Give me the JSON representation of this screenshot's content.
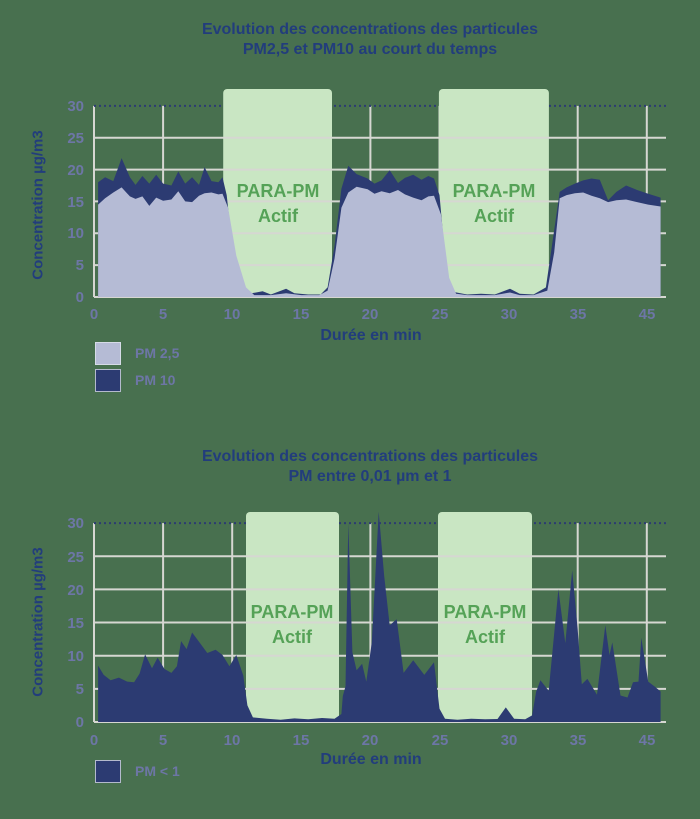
{
  "colors": {
    "background": "#48704F",
    "navy": "#2C3B72",
    "lavender": "#B5BBD5",
    "band_green": "#C9E6C3",
    "band_text_green": "#55A257",
    "title_navy": "#223D7C",
    "tick_slate": "#6D76A6",
    "grid_gray": "#D6D7D2"
  },
  "chart_data": [
    {
      "type": "area",
      "title_lines": [
        "Evolution des concentrations des particules",
        "PM2,5 et PM10 au court du temps"
      ],
      "xlabel": "Durée en min",
      "ylabel": "Concentration µg/m3",
      "ylim": [
        0,
        30
      ],
      "y_tick_labels": [
        "0",
        "5",
        "10",
        "15",
        "20",
        "25",
        "30"
      ],
      "x_tick_labels": [
        "0",
        "5",
        "10",
        "15",
        "20",
        "25",
        "30",
        "35",
        "45"
      ],
      "x_tick_units": [
        0,
        5,
        10,
        15,
        20,
        25,
        30,
        35,
        40
      ],
      "band_label_lines": [
        "PARA-PM",
        "Actif"
      ],
      "bands": [
        {
          "label": "PARA-PM Actif",
          "x1": 9.35,
          "x2": 17.22
        },
        {
          "label": "PARA-PM Actif",
          "x1": 24.96,
          "x2": 32.92
        }
      ],
      "series": [
        {
          "name": "PM 2,5",
          "color": "#B5BBD5",
          "points": [
            [
              0.3,
              14.5
            ],
            [
              0.8,
              15.5
            ],
            [
              1.4,
              16.4
            ],
            [
              2.0,
              17.2
            ],
            [
              2.6,
              15.8
            ],
            [
              3.0,
              15.4
            ],
            [
              3.5,
              15.8
            ],
            [
              4.0,
              14.3
            ],
            [
              4.5,
              15.6
            ],
            [
              5.0,
              15.1
            ],
            [
              5.6,
              15.3
            ],
            [
              6.1,
              16.6
            ],
            [
              6.6,
              15.0
            ],
            [
              7.1,
              14.9
            ],
            [
              7.6,
              15.9
            ],
            [
              8.0,
              16.3
            ],
            [
              8.5,
              16.4
            ],
            [
              9.0,
              16.1
            ],
            [
              9.3,
              16.2
            ],
            [
              9.7,
              14.0
            ],
            [
              10.3,
              6.5
            ],
            [
              11.0,
              1.5
            ],
            [
              11.6,
              0.3
            ],
            [
              12.8,
              0.3
            ],
            [
              13.9,
              0.6
            ],
            [
              15.0,
              0.3
            ],
            [
              16.3,
              0.3
            ],
            [
              16.9,
              1.0
            ],
            [
              17.4,
              6.0
            ],
            [
              17.9,
              14.0
            ],
            [
              18.4,
              16.4
            ],
            [
              19.0,
              17.3
            ],
            [
              19.8,
              16.9
            ],
            [
              20.3,
              16.2
            ],
            [
              20.8,
              16.6
            ],
            [
              21.4,
              16.3
            ],
            [
              22.0,
              16.8
            ],
            [
              22.5,
              16.1
            ],
            [
              23.1,
              15.6
            ],
            [
              23.7,
              15.2
            ],
            [
              24.2,
              15.8
            ],
            [
              24.6,
              15.9
            ],
            [
              25.1,
              13.0
            ],
            [
              25.7,
              3.0
            ],
            [
              26.2,
              0.5
            ],
            [
              27.0,
              0.3
            ],
            [
              28.0,
              0.3
            ],
            [
              29.0,
              0.3
            ],
            [
              30.1,
              0.7
            ],
            [
              30.8,
              0.3
            ],
            [
              31.8,
              0.3
            ],
            [
              32.8,
              1.0
            ],
            [
              33.3,
              7.0
            ],
            [
              33.7,
              15.5
            ],
            [
              34.2,
              16.0
            ],
            [
              34.8,
              16.3
            ],
            [
              35.4,
              16.4
            ],
            [
              36.0,
              15.9
            ],
            [
              36.6,
              15.5
            ],
            [
              37.2,
              14.9
            ],
            [
              37.8,
              15.2
            ],
            [
              38.5,
              15.3
            ],
            [
              39.3,
              14.9
            ],
            [
              40.1,
              14.5
            ],
            [
              41.0,
              14.2
            ]
          ]
        },
        {
          "name": "PM 10",
          "color": "#2C3B72",
          "points": [
            [
              0.3,
              18.0
            ],
            [
              0.8,
              18.8
            ],
            [
              1.4,
              18.2
            ],
            [
              2.0,
              21.8
            ],
            [
              2.6,
              18.8
            ],
            [
              3.0,
              17.6
            ],
            [
              3.5,
              19.0
            ],
            [
              4.0,
              17.8
            ],
            [
              4.5,
              19.2
            ],
            [
              5.0,
              17.8
            ],
            [
              5.6,
              17.5
            ],
            [
              6.1,
              19.7
            ],
            [
              6.6,
              17.8
            ],
            [
              7.1,
              18.8
            ],
            [
              7.6,
              17.6
            ],
            [
              8.0,
              20.4
            ],
            [
              8.5,
              18.2
            ],
            [
              9.0,
              18.0
            ],
            [
              9.3,
              18.8
            ],
            [
              9.6,
              16.0
            ],
            [
              10.1,
              6.0
            ],
            [
              10.6,
              1.2
            ],
            [
              11.2,
              0.5
            ],
            [
              12.2,
              0.9
            ],
            [
              12.8,
              0.4
            ],
            [
              13.9,
              1.3
            ],
            [
              14.5,
              0.6
            ],
            [
              15.5,
              0.4
            ],
            [
              16.4,
              0.4
            ],
            [
              16.9,
              1.5
            ],
            [
              17.4,
              8.0
            ],
            [
              17.9,
              17.0
            ],
            [
              18.4,
              20.6
            ],
            [
              19.0,
              19.3
            ],
            [
              19.8,
              18.6
            ],
            [
              20.3,
              17.8
            ],
            [
              20.8,
              18.3
            ],
            [
              21.4,
              19.9
            ],
            [
              22.0,
              17.9
            ],
            [
              22.5,
              18.7
            ],
            [
              23.1,
              19.2
            ],
            [
              23.7,
              18.4
            ],
            [
              24.2,
              19.0
            ],
            [
              24.6,
              18.6
            ],
            [
              25.0,
              16.0
            ],
            [
              25.5,
              4.0
            ],
            [
              26.0,
              0.8
            ],
            [
              27.0,
              0.4
            ],
            [
              28.0,
              0.5
            ],
            [
              29.0,
              0.4
            ],
            [
              30.1,
              1.3
            ],
            [
              30.8,
              0.5
            ],
            [
              31.8,
              0.4
            ],
            [
              32.7,
              1.5
            ],
            [
              33.2,
              9.0
            ],
            [
              33.7,
              16.5
            ],
            [
              34.2,
              17.2
            ],
            [
              34.8,
              17.8
            ],
            [
              35.4,
              18.3
            ],
            [
              36.0,
              18.6
            ],
            [
              36.6,
              18.4
            ],
            [
              37.2,
              15.2
            ],
            [
              37.8,
              16.5
            ],
            [
              38.5,
              17.5
            ],
            [
              39.3,
              16.8
            ],
            [
              40.1,
              16.2
            ],
            [
              41.0,
              15.6
            ]
          ]
        }
      ]
    },
    {
      "type": "area",
      "title_lines": [
        "Evolution des concentrations des particules",
        "PM entre 0,01 µm et 1"
      ],
      "xlabel": "Durée en min",
      "ylabel": "Concentration µg/m3",
      "ylim": [
        0,
        30
      ],
      "y_tick_labels": [
        "0",
        "5",
        "10",
        "15",
        "20",
        "25",
        "30"
      ],
      "x_tick_labels": [
        "0",
        "5",
        "10",
        "15",
        "20",
        "25",
        "30",
        "35",
        "45"
      ],
      "x_tick_units": [
        0,
        5,
        10,
        15,
        20,
        25,
        30,
        35,
        40
      ],
      "band_label_lines": [
        "PARA-PM",
        "Actif"
      ],
      "bands": [
        {
          "label": "PARA-PM Actif",
          "x1": 11.0,
          "x2": 17.73
        },
        {
          "label": "PARA-PM Actif",
          "x1": 24.89,
          "x2": 31.69
        }
      ],
      "series": [
        {
          "name": "PM < 1",
          "color": "#2C3B72",
          "points": [
            [
              0.3,
              8.5
            ],
            [
              0.7,
              7.1
            ],
            [
              1.2,
              6.3
            ],
            [
              1.8,
              6.7
            ],
            [
              2.4,
              6.1
            ],
            [
              2.9,
              6.0
            ],
            [
              3.3,
              7.3
            ],
            [
              3.7,
              10.2
            ],
            [
              4.2,
              8.1
            ],
            [
              4.6,
              9.7
            ],
            [
              5.1,
              8.0
            ],
            [
              5.6,
              7.4
            ],
            [
              6.0,
              8.4
            ],
            [
              6.3,
              12.2
            ],
            [
              6.7,
              11.0
            ],
            [
              7.1,
              13.5
            ],
            [
              7.6,
              12.1
            ],
            [
              8.2,
              10.4
            ],
            [
              8.8,
              10.9
            ],
            [
              9.3,
              10.1
            ],
            [
              9.8,
              8.4
            ],
            [
              10.3,
              10.1
            ],
            [
              10.8,
              7.0
            ],
            [
              11.1,
              2.5
            ],
            [
              11.5,
              0.7
            ],
            [
              12.5,
              0.5
            ],
            [
              13.5,
              0.35
            ],
            [
              14.5,
              0.55
            ],
            [
              15.5,
              0.4
            ],
            [
              16.5,
              0.6
            ],
            [
              17.4,
              0.5
            ],
            [
              17.9,
              1.2
            ],
            [
              18.0,
              3.9
            ],
            [
              18.2,
              5.4
            ],
            [
              18.4,
              30.0
            ],
            [
              18.7,
              10.5
            ],
            [
              19.0,
              7.8
            ],
            [
              19.4,
              8.8
            ],
            [
              19.7,
              6.1
            ],
            [
              20.1,
              12.0
            ],
            [
              20.6,
              31.7
            ],
            [
              21.0,
              22.0
            ],
            [
              21.4,
              14.6
            ],
            [
              21.9,
              15.5
            ],
            [
              22.4,
              7.4
            ],
            [
              23.1,
              9.3
            ],
            [
              23.9,
              7.1
            ],
            [
              24.6,
              9.0
            ],
            [
              25.0,
              2.0
            ],
            [
              25.4,
              0.5
            ],
            [
              26.3,
              0.35
            ],
            [
              27.3,
              0.5
            ],
            [
              28.3,
              0.4
            ],
            [
              29.2,
              0.45
            ],
            [
              29.8,
              2.2
            ],
            [
              30.4,
              0.5
            ],
            [
              31.2,
              0.4
            ],
            [
              31.7,
              1.0
            ],
            [
              32.0,
              4.6
            ],
            [
              32.3,
              6.3
            ],
            [
              32.9,
              4.7
            ],
            [
              33.6,
              20.0
            ],
            [
              34.1,
              11.9
            ],
            [
              34.6,
              22.9
            ],
            [
              35.0,
              13.9
            ],
            [
              35.3,
              5.7
            ],
            [
              35.7,
              6.5
            ],
            [
              36.4,
              4.1
            ],
            [
              37.0,
              14.6
            ],
            [
              37.3,
              10.1
            ],
            [
              37.5,
              12.0
            ],
            [
              38.1,
              4.0
            ],
            [
              38.6,
              3.7
            ],
            [
              39.0,
              6.0
            ],
            [
              39.4,
              6.1
            ],
            [
              39.6,
              12.7
            ],
            [
              40.1,
              6.1
            ],
            [
              40.6,
              5.3
            ],
            [
              41.0,
              4.6
            ]
          ]
        }
      ]
    }
  ]
}
